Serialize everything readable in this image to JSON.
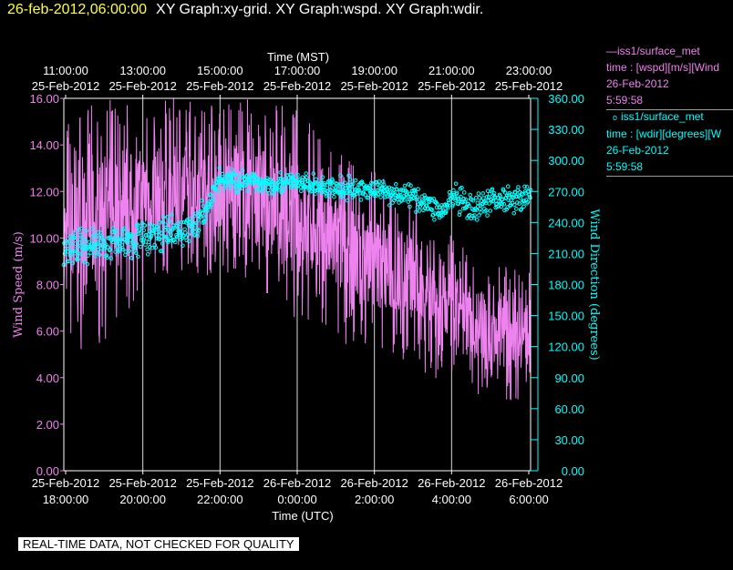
{
  "header": {
    "timestamp": "26-feb-2012,06:00:00",
    "graph_titles": "XY Graph:xy-grid.  XY Graph:wspd.  XY Graph:wdir."
  },
  "legend": [
    {
      "marker": "line",
      "platform": "iss1/surface_met",
      "variable": "time : [wspd][m/s][Wind",
      "date": "26-Feb-2012",
      "time": "5:59:58",
      "color": "#ee82ee"
    },
    {
      "marker": "circle",
      "platform": "iss1/surface_met",
      "variable": "time : [wdir][degrees][W",
      "date": "26-Feb-2012",
      "time": "5:59:58",
      "color": "#00ffff"
    }
  ],
  "quality_banner": "REAL-TIME DATA, NOT CHECKED FOR QUALITY",
  "chart_data": {
    "type": "line",
    "x_top_title": "Time (MST)",
    "x_top_ticks": [
      {
        "time": "11:00:00",
        "date": "25-Feb-2012"
      },
      {
        "time": "13:00:00",
        "date": "25-Feb-2012"
      },
      {
        "time": "15:00:00",
        "date": "25-Feb-2012"
      },
      {
        "time": "17:00:00",
        "date": "25-Feb-2012"
      },
      {
        "time": "19:00:00",
        "date": "25-Feb-2012"
      },
      {
        "time": "21:00:00",
        "date": "25-Feb-2012"
      },
      {
        "time": "23:00:00",
        "date": "25-Feb-2012"
      }
    ],
    "x_bottom_title": "Time (UTC)",
    "x_bottom_ticks": [
      {
        "date": "25-Feb-2012",
        "time": "18:00:00"
      },
      {
        "date": "25-Feb-2012",
        "time": "20:00:00"
      },
      {
        "date": "25-Feb-2012",
        "time": "22:00:00"
      },
      {
        "date": "26-Feb-2012",
        "time": "0:00:00"
      },
      {
        "date": "26-Feb-2012",
        "time": "2:00:00"
      },
      {
        "date": "26-Feb-2012",
        "time": "4:00:00"
      },
      {
        "date": "26-Feb-2012",
        "time": "6:00:00"
      }
    ],
    "x_range_utc": [
      "2012-02-25 18:00:00",
      "2012-02-26 06:00:00"
    ],
    "vertical_grid": true,
    "y_left": {
      "label": "Wind Speed (m/s)",
      "range": [
        0,
        16
      ],
      "ticks": [
        "0.00",
        "2.00",
        "4.00",
        "6.00",
        "8.00",
        "10.00",
        "12.00",
        "14.00",
        "16.00"
      ],
      "color": "#ee82ee"
    },
    "y_right": {
      "label": "Wind Direction (degrees)",
      "range": [
        0,
        360
      ],
      "ticks": [
        "0.00",
        "30.00",
        "60.00",
        "90.00",
        "120.00",
        "150.00",
        "180.00",
        "210.00",
        "240.00",
        "270.00",
        "300.00",
        "330.00",
        "360.00"
      ],
      "color": "#00ffff"
    },
    "series": [
      {
        "variable": "wspd",
        "axis": "left",
        "style": "line",
        "color": "#ee82ee",
        "x_utc": [
          "2012-02-25 18:00:00",
          "2012-02-25 19:00:00",
          "2012-02-25 20:00:00",
          "2012-02-25 21:00:00",
          "2012-02-25 22:00:00",
          "2012-02-25 23:00:00",
          "2012-02-26 00:00:00",
          "2012-02-26 01:00:00",
          "2012-02-26 02:00:00",
          "2012-02-26 03:00:00",
          "2012-02-26 04:00:00",
          "2012-02-26 05:00:00",
          "2012-02-26 06:00:00"
        ],
        "mean": [
          10.0,
          10.5,
          12.0,
          12.5,
          12.5,
          12.0,
          11.0,
          9.0,
          8.5,
          7.5,
          6.5,
          6.0,
          5.5
        ],
        "low": [
          5.0,
          5.5,
          7.5,
          8.0,
          8.5,
          7.5,
          6.5,
          5.5,
          5.0,
          4.5,
          3.5,
          3.0,
          3.0
        ],
        "high": [
          15.0,
          16.0,
          16.0,
          16.0,
          16.0,
          16.0,
          15.5,
          14.0,
          13.0,
          12.0,
          10.0,
          9.0,
          8.5
        ]
      },
      {
        "variable": "wdir",
        "axis": "right",
        "style": "circle",
        "color": "#00ffff",
        "x_utc": [
          "2012-02-25 18:00:00",
          "2012-02-25 19:00:00",
          "2012-02-25 20:00:00",
          "2012-02-25 21:00:00",
          "2012-02-25 21:30:00",
          "2012-02-25 22:00:00",
          "2012-02-25 23:00:00",
          "2012-02-26 00:00:00",
          "2012-02-26 01:00:00",
          "2012-02-26 02:00:00",
          "2012-02-26 03:00:00",
          "2012-02-26 03:45:00",
          "2012-02-26 04:00:00",
          "2012-02-26 04:30:00",
          "2012-02-26 05:00:00",
          "2012-02-26 06:00:00"
        ],
        "values": [
          215,
          220,
          225,
          230,
          240,
          282,
          278,
          278,
          272,
          272,
          265,
          250,
          265,
          250,
          262,
          265
        ],
        "spread": [
          15,
          14,
          14,
          13,
          12,
          10,
          9,
          9,
          9,
          9,
          9,
          10,
          12,
          12,
          11,
          10
        ]
      }
    ]
  }
}
